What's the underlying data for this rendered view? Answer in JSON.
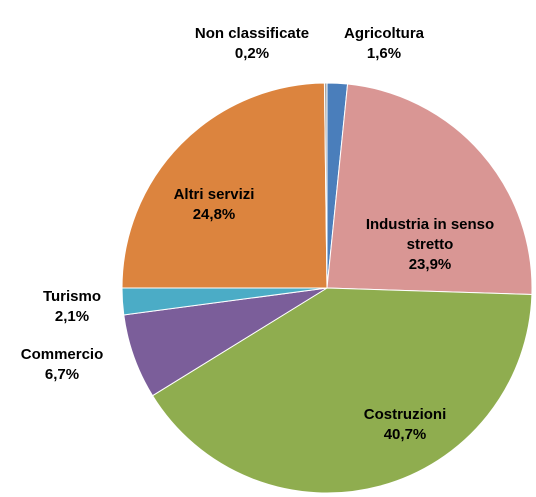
{
  "chart_data": {
    "type": "pie",
    "categories": [
      "Agricoltura",
      "Industria in senso stretto",
      "Costruzioni",
      "Commercio",
      "Turismo",
      "Altri servizi",
      "Non classificate"
    ],
    "values": [
      1.6,
      23.9,
      40.7,
      6.7,
      2.1,
      24.8,
      0.2
    ],
    "value_labels": [
      "1,6%",
      "23,9%",
      "40,7%",
      "6,7%",
      "2,1%",
      "24,8%",
      "0,2%"
    ],
    "colors": [
      "#4a7ebb",
      "#d99694",
      "#8fad4f",
      "#7b5e9a",
      "#4bacc6",
      "#dc843e",
      "#a5a5a5"
    ]
  }
}
